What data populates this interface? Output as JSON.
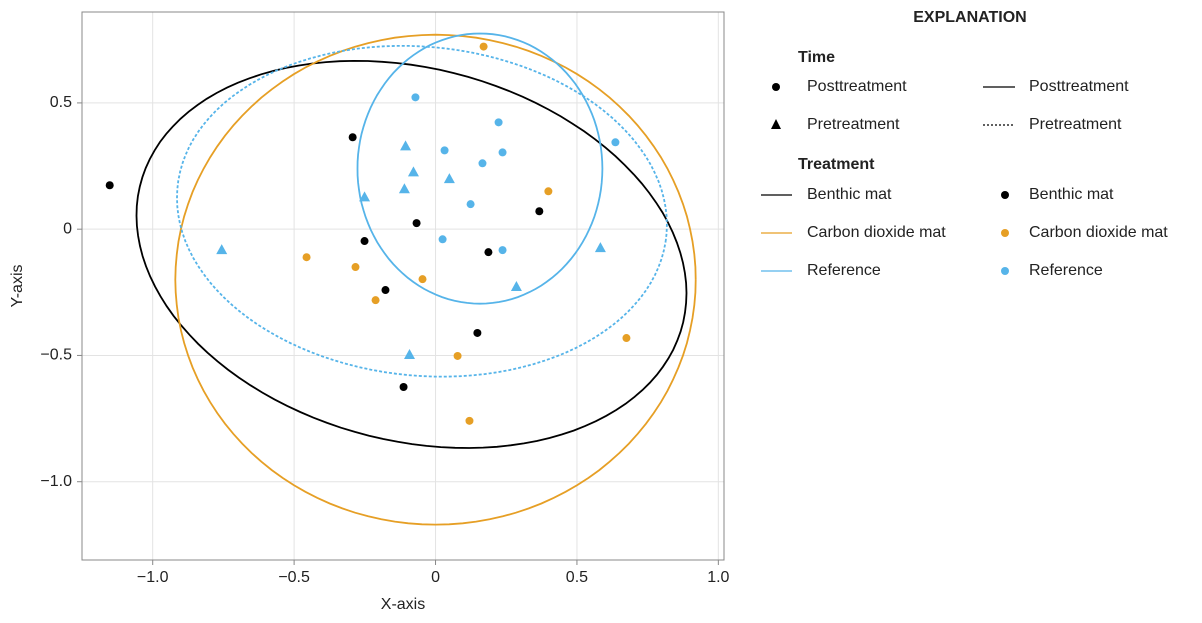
{
  "chart_data": {
    "type": "scatter",
    "xlabel": "X-axis",
    "ylabel": "Y-axis",
    "xlim": [
      -1.25,
      1.02
    ],
    "ylim": [
      -1.31,
      0.86
    ],
    "xticks": [
      {
        "value": -1.0,
        "label": "−1.0"
      },
      {
        "value": -0.5,
        "label": "−0.5"
      },
      0,
      0.5,
      {
        "value": 1.0,
        "label": "1.0"
      }
    ],
    "yticks": [
      {
        "value": -1.0,
        "label": "−1.0"
      },
      {
        "value": -0.5,
        "label": "−0.5"
      },
      0,
      0.5
    ],
    "grid": true,
    "legend": {
      "title": "EXPLANATION",
      "time_title": "Time",
      "time": [
        "Posttreatment",
        "Pretreatment"
      ],
      "treatment_title": "Treatment"
    },
    "series": [
      {
        "name": "Benthic mat",
        "color": "#000000",
        "marker": "circle",
        "x": [
          -1.152,
          -0.293,
          -0.251,
          -0.067,
          -0.177,
          0.187,
          0.367,
          0.148,
          -0.113
        ],
        "y": [
          0.174,
          0.364,
          -0.047,
          0.024,
          -0.241,
          -0.091,
          0.071,
          -0.411,
          -0.625
        ]
      },
      {
        "name": "Carbon dioxide mat",
        "color": "#e69f25",
        "marker": "circle",
        "x": [
          0.17,
          0.399,
          -0.456,
          -0.283,
          -0.046,
          -0.212,
          0.078,
          0.675,
          0.12
        ],
        "y": [
          0.723,
          0.15,
          -0.111,
          -0.15,
          -0.198,
          -0.281,
          -0.502,
          -0.431,
          -0.759
        ]
      },
      {
        "name": "Reference",
        "color": "#56b4e9",
        "marker": "circle",
        "x": [
          -0.071,
          0.223,
          0.032,
          0.237,
          0.166,
          0.636,
          0.124,
          0.025,
          0.237
        ],
        "y": [
          0.522,
          0.423,
          0.312,
          0.304,
          0.261,
          0.344,
          0.099,
          -0.04,
          -0.083
        ]
      },
      {
        "name": "Reference",
        "color": "#56b4e9",
        "marker": "triangle",
        "x": [
          -0.106,
          -0.078,
          -0.11,
          0.049,
          -0.251,
          -0.756,
          0.583,
          0.286,
          -0.092
        ],
        "y": [
          0.328,
          0.225,
          0.158,
          0.198,
          0.126,
          -0.083,
          -0.075,
          -0.229,
          -0.498
        ]
      }
    ],
    "ellipses": [
      {
        "color": "#000000",
        "linestyle": "solid",
        "center": [
          -0.085,
          -0.1
        ],
        "radii": [
          1.0,
          0.73
        ],
        "angle": -20
      },
      {
        "color": "#e69f25",
        "linestyle": "solid",
        "center": [
          0.0,
          -0.2
        ],
        "radii": [
          0.92,
          0.97
        ],
        "angle": 0
      },
      {
        "color": "#56b4e9",
        "linestyle": "solid",
        "center": [
          0.157,
          0.24
        ],
        "radii": [
          0.433,
          0.535
        ],
        "angle": 0
      },
      {
        "color": "#56b4e9",
        "linestyle": "dotted",
        "center": [
          -0.048,
          0.071
        ],
        "radii": [
          0.87,
          0.65
        ],
        "angle": -8
      }
    ]
  }
}
